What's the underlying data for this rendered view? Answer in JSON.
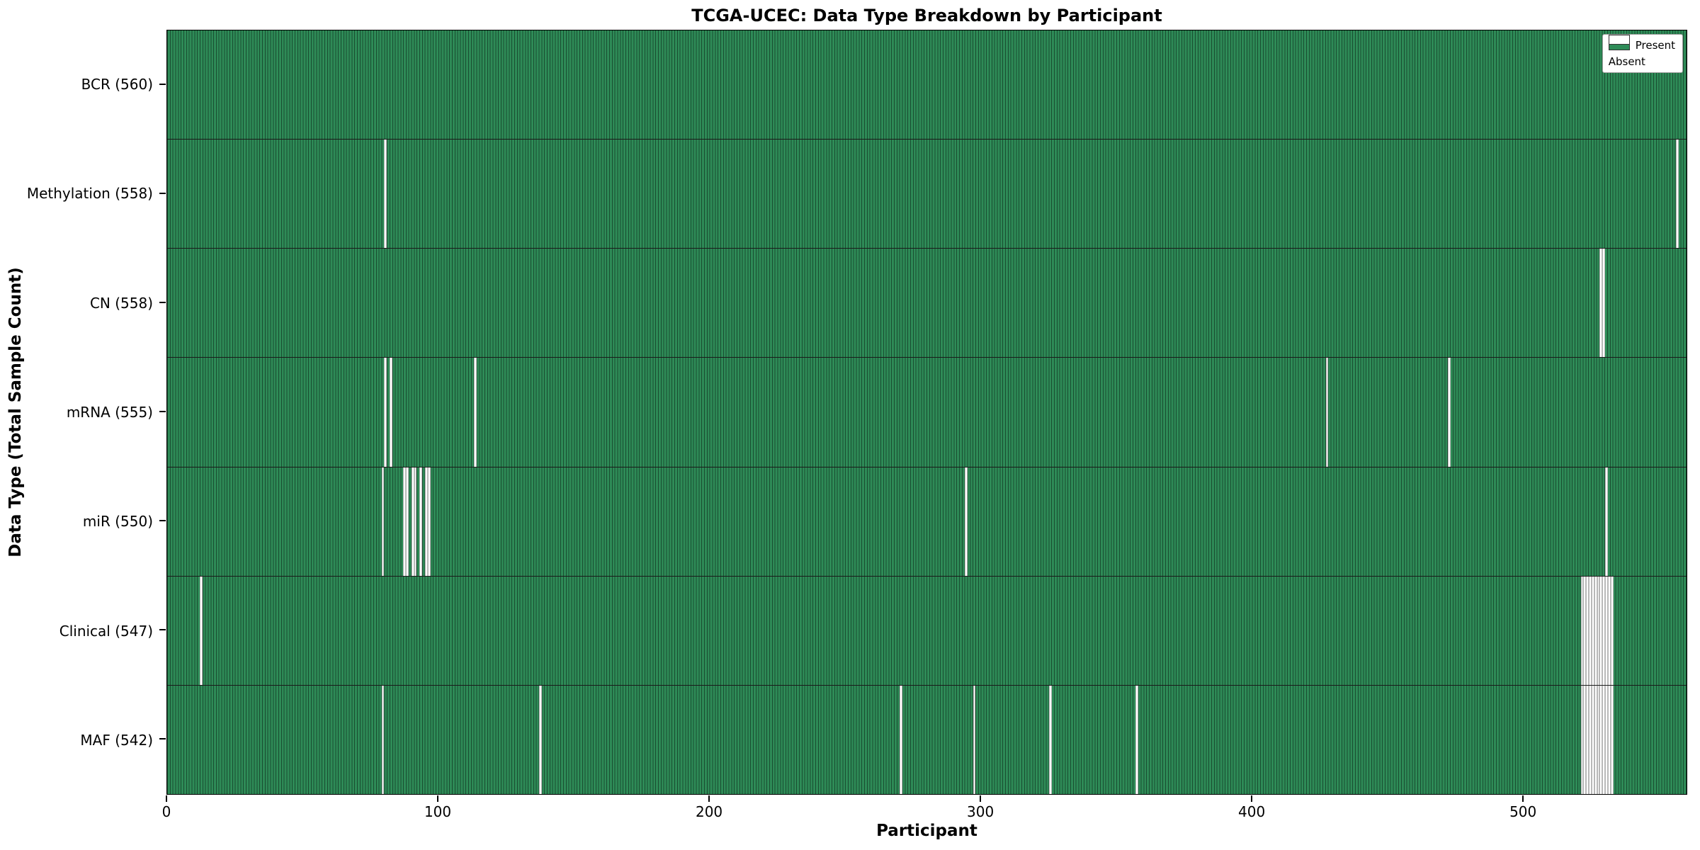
{
  "title": "TCGA-UCEC: Data Type Breakdown by Participant",
  "xlabel": "Participant",
  "ylabel": "Data Type (Total Sample Count)",
  "legend": {
    "present": "Present",
    "absent": "Absent"
  },
  "colors": {
    "present": "#2e8b57",
    "present_edge": "#1d5c39",
    "absent": "#ffffff"
  },
  "chart_data": {
    "type": "heatmap",
    "n_participants": 560,
    "x_ticks": [
      0,
      100,
      200,
      300,
      400,
      500
    ],
    "xlim": [
      0,
      560
    ],
    "legend_position": "upper right",
    "rows": [
      {
        "label": "BCR (560)",
        "total": 560,
        "absent": []
      },
      {
        "label": "Methylation (558)",
        "total": 558,
        "absent": [
          80,
          556
        ]
      },
      {
        "label": "CN (558)",
        "total": 558,
        "absent": [
          528,
          529
        ]
      },
      {
        "label": "mRNA (555)",
        "total": 555,
        "absent": [
          80,
          82,
          113,
          427,
          472
        ]
      },
      {
        "label": "miR (550)",
        "total": 550,
        "absent": [
          79,
          87,
          88,
          90,
          91,
          93,
          95,
          96,
          294,
          530
        ]
      },
      {
        "label": "Clinical (547)",
        "total": 547,
        "absent": [
          12,
          521,
          522,
          523,
          524,
          525,
          526,
          527,
          528,
          529,
          530,
          531,
          532
        ]
      },
      {
        "label": "MAF (542)",
        "total": 542,
        "absent": [
          79,
          137,
          270,
          297,
          325,
          357,
          521,
          522,
          523,
          524,
          525,
          526,
          527,
          528,
          529,
          530,
          531,
          532
        ]
      }
    ]
  }
}
